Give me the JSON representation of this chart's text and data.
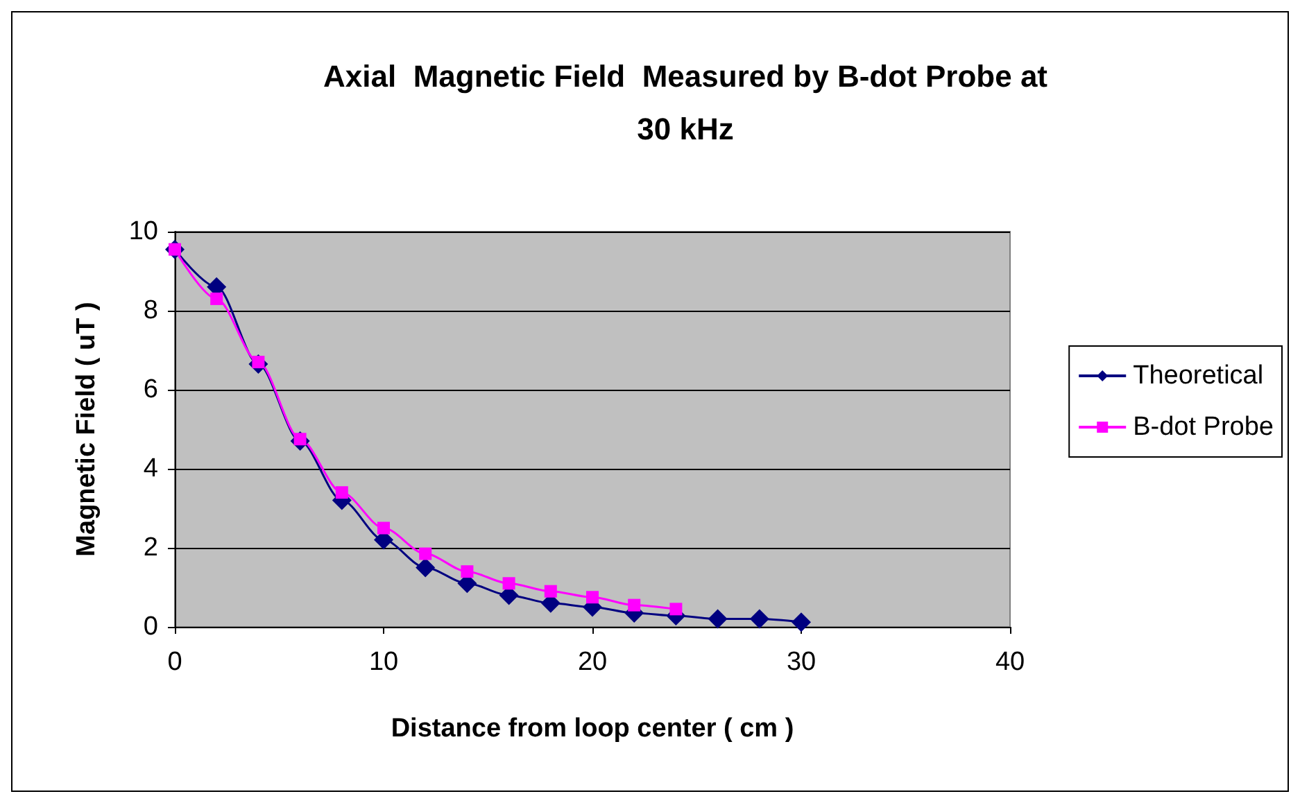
{
  "chart_data": {
    "type": "line",
    "title": "Axial  Magnetic Field  Measured by B-dot Probe at\n30 kHz",
    "xlabel": "Distance from loop center ( cm )",
    "ylabel": "Magnetic Field ( uT )",
    "xlim": [
      0,
      40
    ],
    "xticks": [
      0,
      10,
      20,
      30,
      40
    ],
    "ylim": [
      0,
      10
    ],
    "yticks": [
      0,
      2,
      4,
      6,
      8,
      10
    ],
    "grid": "y",
    "legend": "right",
    "series": [
      {
        "name": "Theoretical",
        "color": "#000080",
        "marker": "diamond",
        "x": [
          0,
          2,
          4,
          6,
          8,
          10,
          12,
          14,
          16,
          18,
          20,
          22,
          24,
          26,
          28,
          30
        ],
        "values": [
          9.55,
          8.6,
          6.65,
          4.7,
          3.2,
          2.2,
          1.5,
          1.1,
          0.8,
          0.6,
          0.5,
          0.35,
          0.28,
          0.2,
          0.2,
          0.12
        ]
      },
      {
        "name": "B-dot Probe",
        "color": "#ff00ff",
        "marker": "square",
        "x": [
          0,
          2,
          4,
          6,
          8,
          10,
          12,
          14,
          16,
          18,
          20,
          22,
          24
        ],
        "values": [
          9.55,
          8.3,
          6.7,
          4.75,
          3.4,
          2.5,
          1.85,
          1.4,
          1.1,
          0.9,
          0.75,
          0.55,
          0.45
        ]
      }
    ]
  }
}
